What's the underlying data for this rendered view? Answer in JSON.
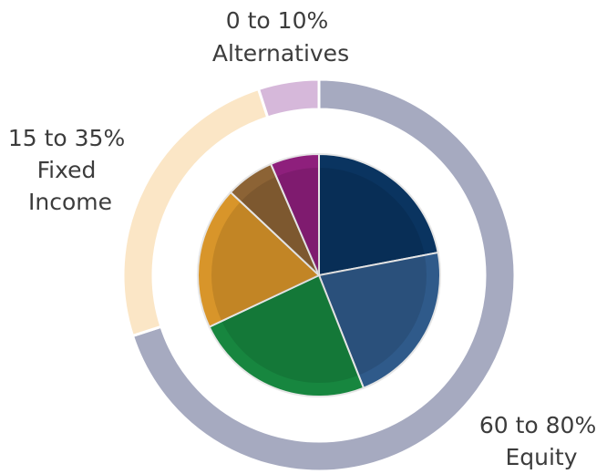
{
  "chart_data": {
    "type": "pie",
    "outer_ring": [
      {
        "line1": "60 to 80%",
        "line2": "Equity",
        "value": 70,
        "color": "#a6aac0"
      },
      {
        "line1": "15 to 35%",
        "line2": "Fixed",
        "line3": "Income",
        "value": 25,
        "color": "#fbe6c6"
      },
      {
        "line1": "0 to 10%",
        "line2": "Alternatives",
        "value": 5,
        "color": "#d6b8da"
      }
    ],
    "inner_pie": [
      {
        "value": 22,
        "color": "#0a3460"
      },
      {
        "value": 22,
        "color": "#2f5a8a"
      },
      {
        "value": 24,
        "color": "#17863f"
      },
      {
        "value": 19,
        "color": "#d8952a"
      },
      {
        "value": 6.5,
        "color": "#8c6335"
      },
      {
        "value": 6.5,
        "color": "#8e1f7c"
      }
    ]
  }
}
